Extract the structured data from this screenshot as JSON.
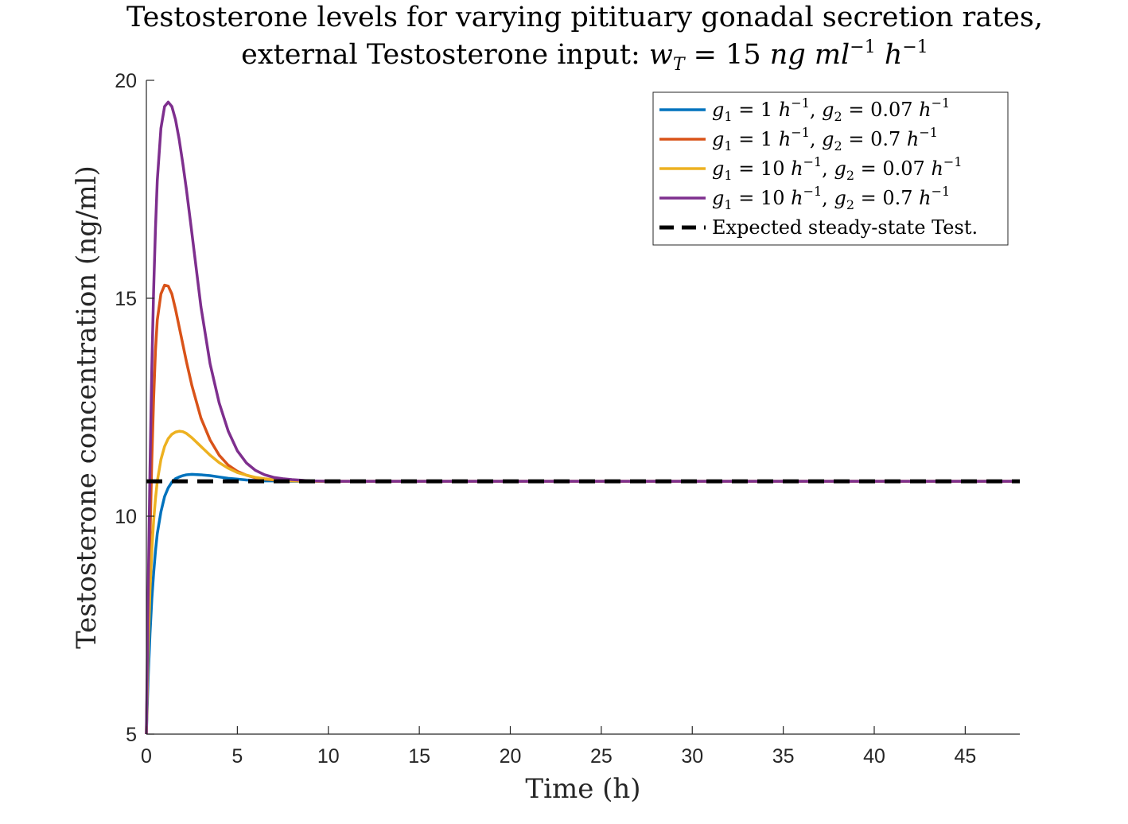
{
  "chart_data": {
    "type": "line",
    "title_line1": "Testosterone levels for varying pitituary gonadal secretion rates,",
    "title_line2": "external Testosterone input: w_T = 15 ng ml^-1 h^-1",
    "xlabel": "Time (h)",
    "ylabel": "Testosterone concentration (ng/ml)",
    "xlim": [
      0,
      48
    ],
    "ylim": [
      5,
      20
    ],
    "xticks": [
      0,
      5,
      10,
      15,
      20,
      25,
      30,
      35,
      40,
      45
    ],
    "yticks": [
      5,
      10,
      15,
      20
    ],
    "grid": false,
    "legend_position": "top-right",
    "x": [
      0,
      0.1,
      0.2,
      0.3,
      0.4,
      0.5,
      0.6,
      0.8,
      1.0,
      1.2,
      1.4,
      1.6,
      1.8,
      2.0,
      2.2,
      2.5,
      3.0,
      3.5,
      4.0,
      4.5,
      5.0,
      5.5,
      6.0,
      6.5,
      7.0,
      7.5,
      8.0,
      9.0,
      10.0,
      12.0,
      15.0,
      20.0,
      30.0,
      40.0,
      48.0
    ],
    "series": [
      {
        "name": "g1 = 1 h^-1, g2 = 0.07 h^-1",
        "color": "#0072BD",
        "style": "solid",
        "values": [
          5.0,
          6.3,
          7.3,
          8.1,
          8.7,
          9.2,
          9.6,
          10.1,
          10.45,
          10.65,
          10.78,
          10.86,
          10.9,
          10.93,
          10.95,
          10.96,
          10.95,
          10.93,
          10.9,
          10.87,
          10.85,
          10.83,
          10.82,
          10.81,
          10.81,
          10.8,
          10.8,
          10.8,
          10.8,
          10.8,
          10.8,
          10.8,
          10.8,
          10.8,
          10.8
        ]
      },
      {
        "name": "g1 = 1 h^-1, g2 = 0.7 h^-1",
        "color": "#D95319",
        "style": "solid",
        "values": [
          5.0,
          7.4,
          9.5,
          11.3,
          12.7,
          13.8,
          14.5,
          15.1,
          15.3,
          15.28,
          15.1,
          14.75,
          14.35,
          13.95,
          13.55,
          13.0,
          12.25,
          11.75,
          11.4,
          11.17,
          11.03,
          10.94,
          10.88,
          10.85,
          10.83,
          10.82,
          10.81,
          10.8,
          10.8,
          10.8,
          10.8,
          10.8,
          10.8,
          10.8,
          10.8
        ]
      },
      {
        "name": "g1 = 10 h^-1, g2 = 0.07 h^-1",
        "color": "#EDB120",
        "style": "solid",
        "values": [
          5.0,
          7.0,
          8.3,
          9.2,
          9.9,
          10.4,
          10.8,
          11.3,
          11.6,
          11.78,
          11.88,
          11.93,
          11.95,
          11.94,
          11.9,
          11.8,
          11.6,
          11.4,
          11.23,
          11.1,
          11.0,
          10.94,
          10.89,
          10.86,
          10.84,
          10.82,
          10.81,
          10.8,
          10.8,
          10.8,
          10.8,
          10.8,
          10.8,
          10.8,
          10.8
        ]
      },
      {
        "name": "g1 = 10 h^-1, g2 = 0.7 h^-1",
        "color": "#7E2F8E",
        "style": "solid",
        "values": [
          5.0,
          8.3,
          11.1,
          13.4,
          15.2,
          16.6,
          17.7,
          18.9,
          19.4,
          19.5,
          19.4,
          19.1,
          18.65,
          18.1,
          17.5,
          16.5,
          14.8,
          13.5,
          12.6,
          11.95,
          11.5,
          11.22,
          11.05,
          10.95,
          10.89,
          10.86,
          10.84,
          10.81,
          10.8,
          10.8,
          10.8,
          10.8,
          10.8,
          10.8,
          10.8
        ]
      },
      {
        "name": "Expected steady-state Test.",
        "color": "#000000",
        "style": "dashed",
        "values": [
          10.8,
          10.8,
          10.8,
          10.8,
          10.8,
          10.8,
          10.8,
          10.8,
          10.8,
          10.8,
          10.8,
          10.8,
          10.8,
          10.8,
          10.8,
          10.8,
          10.8,
          10.8,
          10.8,
          10.8,
          10.8,
          10.8,
          10.8,
          10.8,
          10.8,
          10.8,
          10.8,
          10.8,
          10.8,
          10.8,
          10.8,
          10.8,
          10.8,
          10.8,
          10.8
        ]
      }
    ]
  }
}
